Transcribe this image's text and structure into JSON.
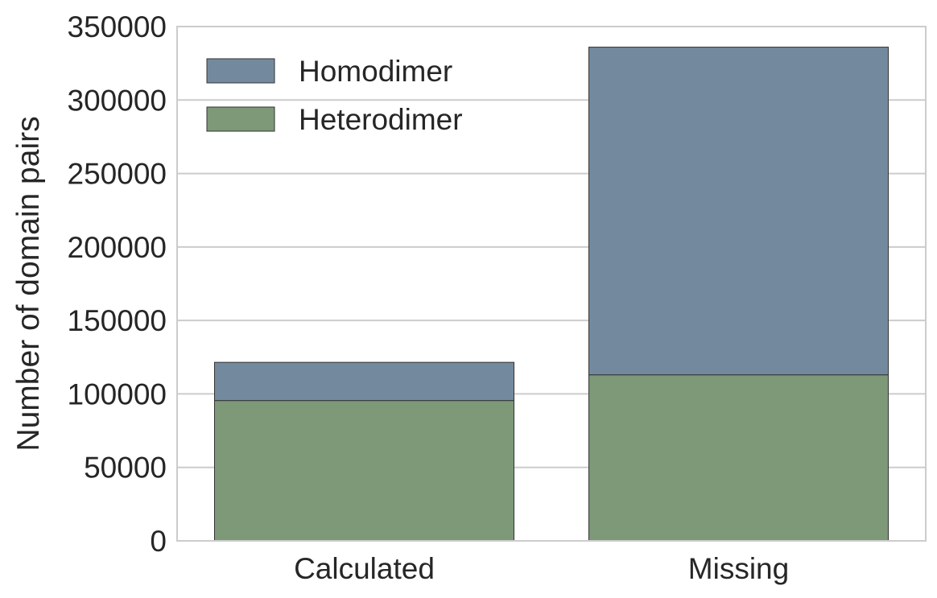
{
  "chart_data": {
    "type": "bar",
    "stacked": true,
    "categories": [
      "Calculated",
      "Missing"
    ],
    "series": [
      {
        "name": "Heterodimer",
        "values": [
          95500,
          113000
        ],
        "color": "#7d9977"
      },
      {
        "name": "Homodimer",
        "values": [
          26000,
          223000
        ],
        "color": "#738a9e"
      }
    ],
    "legend_order": [
      "Homodimer",
      "Heterodimer"
    ],
    "ylabel": "Number of domain pairs",
    "xlabel": "",
    "ylim": [
      0,
      350000
    ],
    "yticks": [
      "0",
      "50000",
      "100000",
      "150000",
      "200000",
      "250000",
      "300000",
      "350000"
    ],
    "ytick_values": [
      0,
      50000,
      100000,
      150000,
      200000,
      250000,
      300000,
      350000
    ],
    "grid": true,
    "legend_position": "top-left",
    "frame_color": "#cccccc",
    "grid_color": "#cccccc",
    "bar_edge_color": "#333333"
  }
}
